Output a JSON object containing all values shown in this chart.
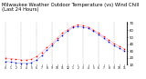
{
  "title1": "Milwaukee Weather Outdoor Temperature (vs) Wind Chill (Last 24 Hours)",
  "title_fontsize": 3.8,
  "background_color": "#ffffff",
  "grid_color": "#aaaaaa",
  "temp_color": "#ff0000",
  "wind_chill_color": "#0000cc",
  "ylim": [
    10,
    72
  ],
  "yticks": [
    10,
    20,
    30,
    40,
    50,
    60,
    70
  ],
  "ytick_labels": [
    "10",
    "20",
    "30",
    "40",
    "50",
    "60",
    "70"
  ],
  "hours": [
    0,
    1,
    2,
    3,
    4,
    5,
    6,
    7,
    8,
    9,
    10,
    11,
    12,
    13,
    14,
    15,
    16,
    17,
    18,
    19,
    20,
    21,
    22,
    23
  ],
  "xtick_labels": [
    "0",
    "1",
    "2",
    "3",
    "4",
    "5",
    "6",
    "7",
    "8",
    "9",
    "10",
    "11",
    "12",
    "1",
    "2",
    "3",
    "4",
    "5",
    "6",
    "7",
    "8",
    "9",
    "10",
    "11"
  ],
  "temperature": [
    20,
    19,
    18,
    17,
    17,
    18,
    22,
    28,
    35,
    41,
    49,
    56,
    61,
    66,
    68,
    67,
    65,
    61,
    56,
    51,
    46,
    41,
    37,
    33
  ],
  "wind_chill": [
    15,
    14,
    13,
    12,
    12,
    13,
    17,
    23,
    31,
    38,
    46,
    53,
    59,
    64,
    66,
    65,
    63,
    59,
    54,
    49,
    43,
    38,
    34,
    30
  ],
  "marker_size": 1.2,
  "line_width": 0.5,
  "grid_x_positions": [
    0,
    3,
    6,
    9,
    12,
    15,
    18,
    21
  ]
}
